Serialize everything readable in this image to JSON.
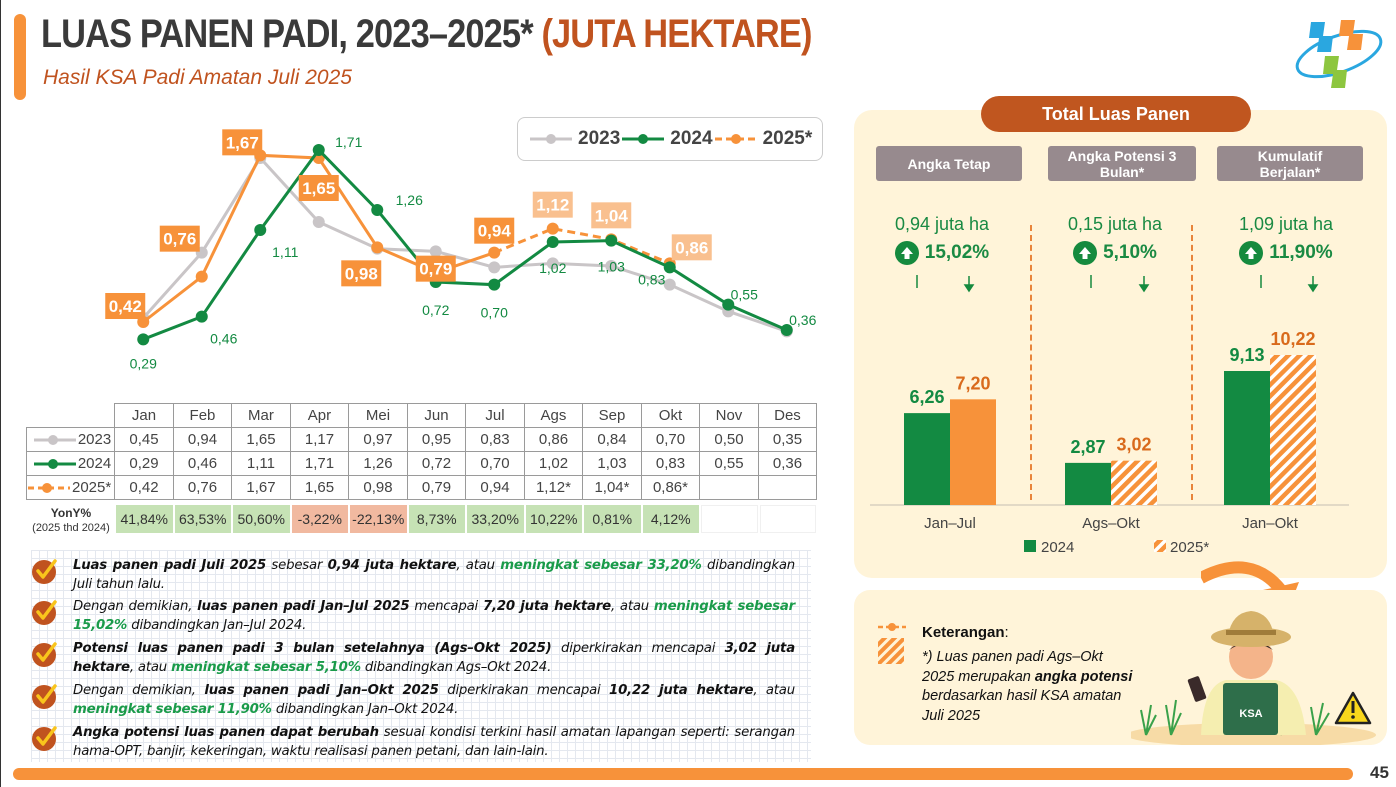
{
  "header": {
    "title": "LUAS PANEN PADI, 2023–2025*",
    "title_unit": "(JUTA HEKTARE)",
    "subtitle": "Hasil KSA Padi Amatan Juli 2025",
    "logo": "bps-logo"
  },
  "colors": {
    "s2023": "#c9c5c7",
    "s2024": "#138a42",
    "s2025": "#f7923a",
    "s2025_light": "#f9c08f",
    "accent": "#c0531f",
    "yoy_pos": "#c6e2b5",
    "yoy_neg": "#f1b9a0"
  },
  "chart_data": [
    {
      "type": "line",
      "title": "Luas Panen Padi Bulanan",
      "categories": [
        "Jan",
        "Feb",
        "Mar",
        "Apr",
        "Mei",
        "Jun",
        "Jul",
        "Ags",
        "Sep",
        "Okt",
        "Nov",
        "Des"
      ],
      "ylim": [
        0,
        1.8
      ],
      "grid": false,
      "legend": "top-right",
      "series": [
        {
          "name": "2023",
          "values": [
            0.45,
            0.94,
            1.65,
            1.17,
            0.97,
            0.95,
            0.83,
            0.86,
            0.84,
            0.7,
            0.5,
            0.35
          ],
          "labels_shown": false
        },
        {
          "name": "2024",
          "values": [
            0.29,
            0.46,
            1.11,
            1.71,
            1.26,
            0.72,
            0.7,
            1.02,
            1.03,
            0.83,
            0.55,
            0.36
          ],
          "labels": [
            "0,29",
            "0,46",
            "1,11",
            "1,71",
            "1,26",
            "0,72",
            "0,70",
            "1,02",
            "1,03",
            "0,83",
            "0,55",
            "0,36"
          ]
        },
        {
          "name": "2025*",
          "values": [
            0.42,
            0.76,
            1.67,
            1.65,
            0.98,
            0.79,
            0.94,
            1.12,
            1.04,
            0.86,
            null,
            null
          ],
          "labels": [
            "0,42",
            "0,76",
            "1,67",
            "1,65",
            "0,98",
            "0,79",
            "0,94",
            "1,12",
            "1,04",
            "0,86"
          ],
          "potential_from_index": 7
        }
      ]
    },
    {
      "type": "bar",
      "title": "Total Luas Panen",
      "categories": [
        "Jan–Jul",
        "Ags–Okt",
        "Jan–Okt"
      ],
      "series": [
        {
          "name": "2024",
          "values": [
            6.26,
            2.87,
            9.13
          ],
          "labels": [
            "6,26",
            "2,87",
            "9,13"
          ]
        },
        {
          "name": "2025*",
          "values": [
            7.2,
            3.02,
            10.22
          ],
          "labels": [
            "7,20",
            "3,02",
            "10,22"
          ],
          "hatched": [
            false,
            true,
            true
          ]
        }
      ],
      "ylim": [
        0,
        11
      ],
      "legend": "bottom"
    }
  ],
  "legend": [
    "2023",
    "2024",
    "2025*"
  ],
  "table": {
    "months": [
      "Jan",
      "Feb",
      "Mar",
      "Apr",
      "Mei",
      "Jun",
      "Jul",
      "Ags",
      "Sep",
      "Okt",
      "Nov",
      "Des"
    ],
    "rows": [
      {
        "label": "2023",
        "cells": [
          "0,45",
          "0,94",
          "1,65",
          "1,17",
          "0,97",
          "0,95",
          "0,83",
          "0,86",
          "0,84",
          "0,70",
          "0,50",
          "0,35"
        ]
      },
      {
        "label": "2024",
        "cells": [
          "0,29",
          "0,46",
          "1,11",
          "1,71",
          "1,26",
          "0,72",
          "0,70",
          "1,02",
          "1,03",
          "0,83",
          "0,55",
          "0,36"
        ]
      },
      {
        "label": "2025*",
        "cells": [
          "0,42",
          "0,76",
          "1,67",
          "1,65",
          "0,98",
          "0,79",
          "0,94",
          "1,12*",
          "1,04*",
          "0,86*",
          "",
          ""
        ]
      }
    ],
    "yoy_label": "YonY%",
    "yoy_sublabel": "(2025 thd 2024)",
    "yoy": [
      "41,84%",
      "63,53%",
      "50,60%",
      "-3,22%",
      "-22,13%",
      "8,73%",
      "33,20%",
      "10,22%",
      "0,81%",
      "4,12%",
      "",
      ""
    ]
  },
  "bullets": [
    {
      "parts": [
        [
          "b",
          "Luas panen padi Juli 2025"
        ],
        [
          "t",
          " sebesar "
        ],
        [
          "b",
          "0,94 juta hektare"
        ],
        [
          "t",
          ", atau "
        ],
        [
          "g",
          "meningkat sebesar 33,20%"
        ],
        [
          "t",
          " dibandingkan Juli tahun lalu."
        ]
      ]
    },
    {
      "parts": [
        [
          "t",
          "Dengan demikian, "
        ],
        [
          "b",
          "luas panen padi Jan–Jul 2025"
        ],
        [
          "t",
          " mencapai "
        ],
        [
          "b",
          "7,20 juta hektare"
        ],
        [
          "t",
          ", atau "
        ],
        [
          "g",
          "meningkat sebesar 15,02%"
        ],
        [
          "t",
          " dibandingkan Jan–Jul 2024."
        ]
      ]
    },
    {
      "parts": [
        [
          "b",
          "Potensi luas panen padi 3 bulan setelahnya (Ags–Okt 2025)"
        ],
        [
          "t",
          " diperkirakan mencapai "
        ],
        [
          "b",
          "3,02 juta hektare"
        ],
        [
          "t",
          ", atau "
        ],
        [
          "g",
          "meningkat sebesar 5,10%"
        ],
        [
          "t",
          " dibandingkan Ags–Okt 2024."
        ]
      ]
    },
    {
      "parts": [
        [
          "t",
          "Dengan demikian, "
        ],
        [
          "b",
          "luas panen padi Jan–Okt 2025"
        ],
        [
          "t",
          " diperkirakan mencapai "
        ],
        [
          "b",
          "10,22 juta hektare"
        ],
        [
          "t",
          ", atau "
        ],
        [
          "g",
          "meningkat sebesar 11,90%"
        ],
        [
          "t",
          " dibandingkan Jan–Okt 2024."
        ]
      ]
    },
    {
      "parts": [
        [
          "b",
          "Angka potensi luas panen dapat berubah"
        ],
        [
          "t",
          " sesuai kondisi terkini hasil amatan lapangan seperti: serangan hama-OPT, banjir, kekeringan, waktu realisasi panen petani, dan lain-lain."
        ]
      ]
    }
  ],
  "panel": {
    "title": "Total Luas Panen",
    "columns": [
      {
        "head": "Angka Tetap",
        "juta": "0,94 juta ha",
        "pct": "15,02%",
        "category": "Jan–Jul"
      },
      {
        "head": "Angka Potensi 3 Bulan*",
        "juta": "0,15 juta ha",
        "pct": "5,10%",
        "category": "Ags–Okt"
      },
      {
        "head": "Kumulatif Berjalan*",
        "juta": "1,09 juta ha",
        "pct": "11,90%",
        "category": "Jan–Okt"
      }
    ],
    "legend_2024": "2024",
    "legend_2025": "2025*"
  },
  "note": {
    "title": "Keterangan",
    "text_1": "*) Luas panen padi Ags–Okt 2025 merupakan ",
    "text_bold_1": "angka potensi",
    "text_2": " berdasarkan hasil KSA amatan Juli 2025",
    "apron_text": "KSA"
  },
  "page_number": "45"
}
